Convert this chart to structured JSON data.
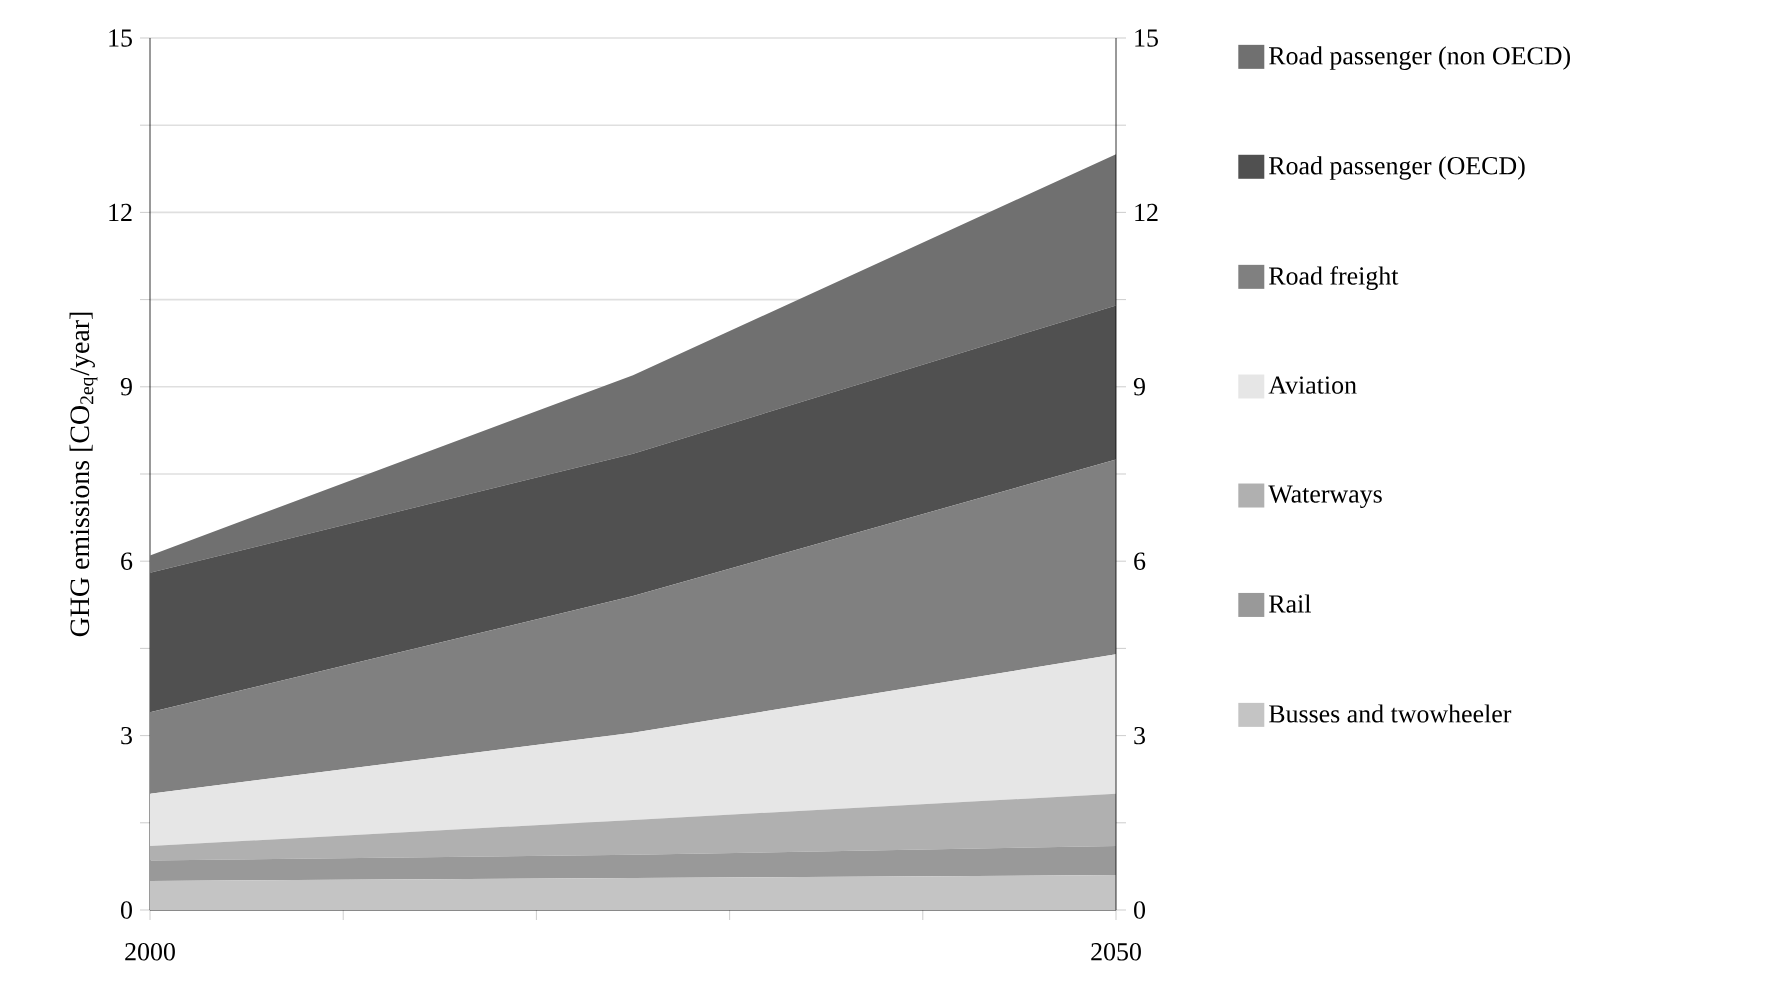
{
  "chart_data": {
    "type": "area",
    "stacked": true,
    "ylabel": "GHG emissions [CO$_{2eq}$/year]",
    "x": [
      2000,
      2025,
      2050
    ],
    "xlim": [
      2000,
      2050
    ],
    "xticks": [
      2000,
      {
        "value": 2010,
        "label": null
      },
      {
        "value": 2020,
        "label": null
      },
      {
        "value": 2030,
        "label": null
      },
      {
        "value": 2040,
        "label": null
      },
      2050
    ],
    "ylim": [
      0,
      15
    ],
    "yticks": [
      0,
      {
        "value": 1.5,
        "label": null
      },
      3,
      {
        "value": 4.5,
        "label": null
      },
      6,
      {
        "value": 7.5,
        "label": null
      },
      9,
      {
        "value": 10.5,
        "label": null
      },
      12,
      {
        "value": 13.5,
        "label": null
      },
      15
    ],
    "y2lim": [
      0,
      15
    ],
    "y2ticks": [
      0,
      {
        "value": 1.5,
        "label": null
      },
      3,
      {
        "value": 4.5,
        "label": null
      },
      6,
      {
        "value": 7.5,
        "label": null
      },
      9,
      {
        "value": 10.5,
        "label": null
      },
      12,
      {
        "value": 13.5,
        "label": null
      },
      15
    ],
    "grid": "y",
    "legend": "right",
    "series": [
      {
        "name": "Busses and twowheeler",
        "color": "#c4c4c4",
        "values": [
          0.5,
          0.55,
          0.6
        ]
      },
      {
        "name": "Rail",
        "color": "#999999",
        "values": [
          0.35,
          0.4,
          0.5
        ]
      },
      {
        "name": "Waterways",
        "color": "#b0b0b0",
        "values": [
          0.25,
          0.6,
          0.9
        ]
      },
      {
        "name": "Aviation",
        "color": "#e6e6e6",
        "values": [
          0.9,
          1.5,
          2.4
        ]
      },
      {
        "name": "Road freight",
        "color": "#808080",
        "values": [
          1.4,
          2.35,
          3.35
        ]
      },
      {
        "name": "Road passenger (OECD)",
        "color": "#505050",
        "values": [
          2.4,
          2.45,
          2.65
        ]
      },
      {
        "name": "Road passenger (non OECD)",
        "color": "#707070",
        "values": [
          0.3,
          1.35,
          2.6
        ]
      }
    ]
  }
}
